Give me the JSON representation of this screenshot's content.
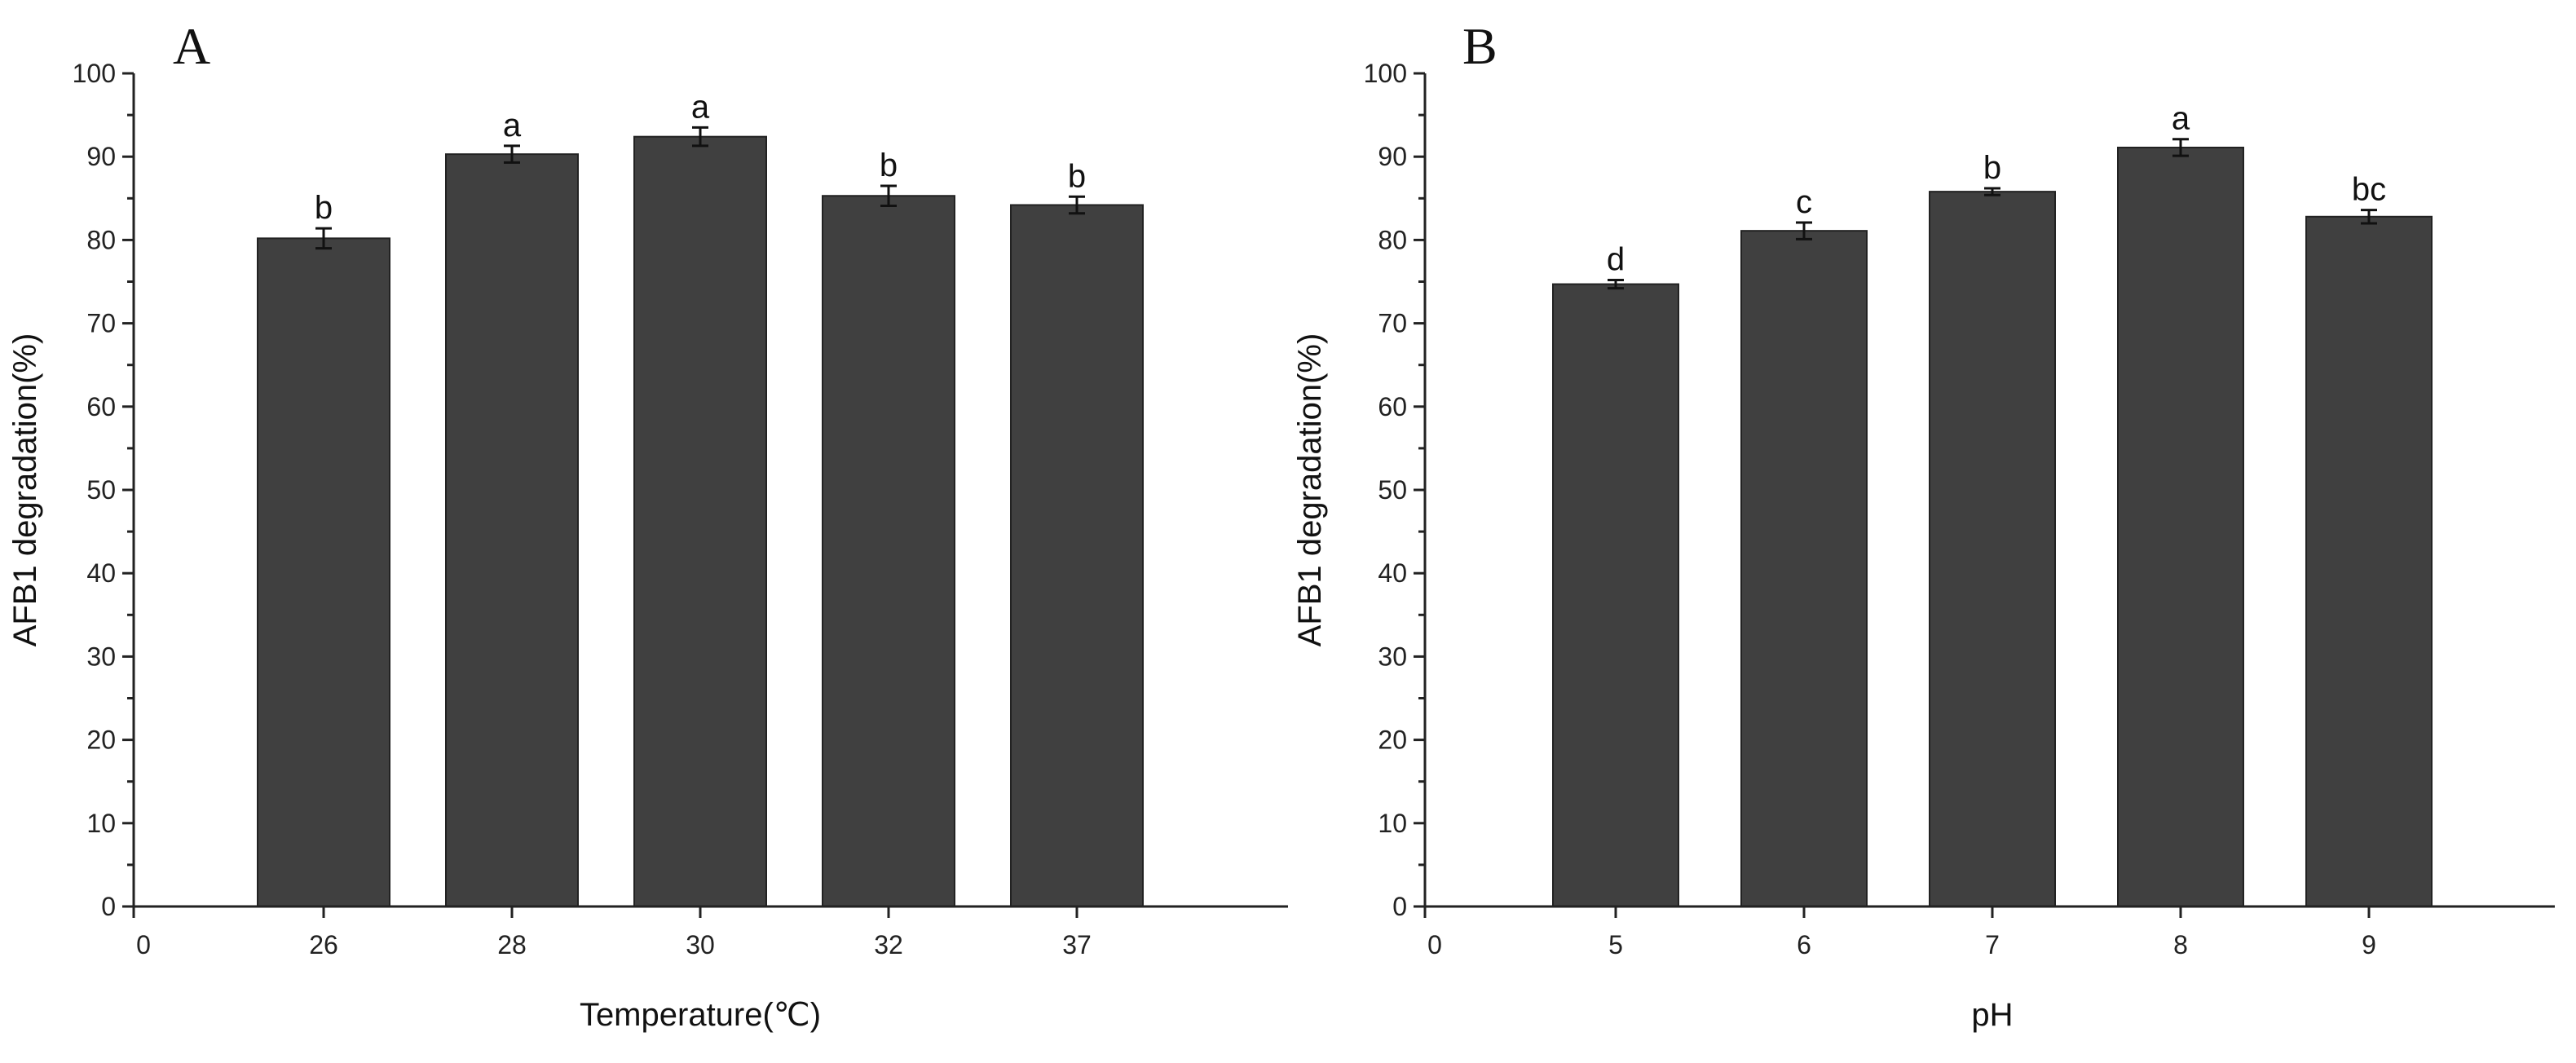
{
  "chart_data": [
    {
      "type": "bar",
      "panel_label": "A",
      "x_origin_label": "0",
      "categories": [
        "26",
        "28",
        "30",
        "32",
        "37"
      ],
      "values": [
        80.2,
        90.3,
        92.4,
        85.3,
        84.2
      ],
      "errors": [
        1.2,
        1.0,
        1.1,
        1.2,
        1.0
      ],
      "significance": [
        "b",
        "a",
        "a",
        "b",
        "b"
      ],
      "xlabel": "Temperature(℃)",
      "ylabel": "AFB1 degradation(%)",
      "ylim": [
        0,
        100
      ],
      "yticks": [
        0,
        10,
        20,
        30,
        40,
        50,
        60,
        70,
        80,
        90,
        100
      ],
      "bar_color": "#404040"
    },
    {
      "type": "bar",
      "panel_label": "B",
      "x_origin_label": "0",
      "categories": [
        "5",
        "6",
        "7",
        "8",
        "9"
      ],
      "values": [
        74.7,
        81.1,
        85.8,
        91.1,
        82.8
      ],
      "errors": [
        0.5,
        1.0,
        0.4,
        1.0,
        0.8
      ],
      "significance": [
        "d",
        "c",
        "b",
        "a",
        "bc"
      ],
      "xlabel": "pH",
      "ylabel": "AFB1 degradation(%)",
      "ylim": [
        0,
        100
      ],
      "yticks": [
        0,
        10,
        20,
        30,
        40,
        50,
        60,
        70,
        80,
        90,
        100
      ],
      "bar_color": "#404040"
    }
  ]
}
